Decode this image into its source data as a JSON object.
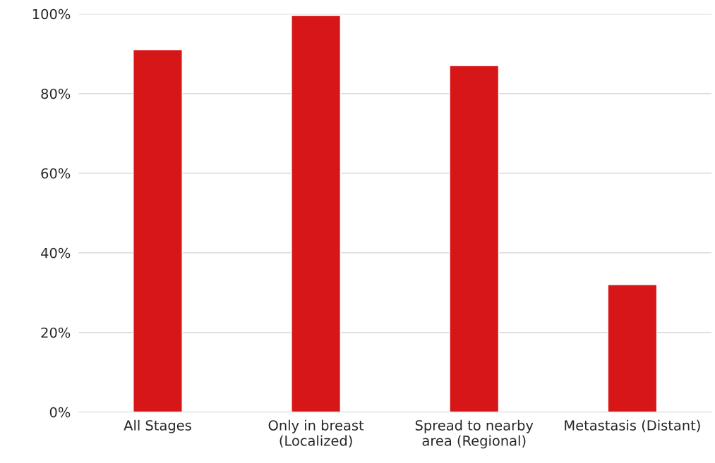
{
  "chart_data": {
    "type": "bar",
    "categories": [
      "All Stages",
      "Only in breast\n(Localized)",
      "Spread to nearby\narea (Regional)",
      "Metastasis (Distant)"
    ],
    "values": [
      91,
      99.6,
      87,
      32
    ],
    "color": "#d71618",
    "ylim": [
      0,
      100
    ],
    "yticks": [
      {
        "value": 0,
        "label": "0%"
      },
      {
        "value": 20,
        "label": "20%"
      },
      {
        "value": 40,
        "label": "40%"
      },
      {
        "value": 60,
        "label": "60%"
      },
      {
        "value": 80,
        "label": "80%"
      },
      {
        "value": 100,
        "label": "100%"
      }
    ],
    "grid": "y"
  }
}
